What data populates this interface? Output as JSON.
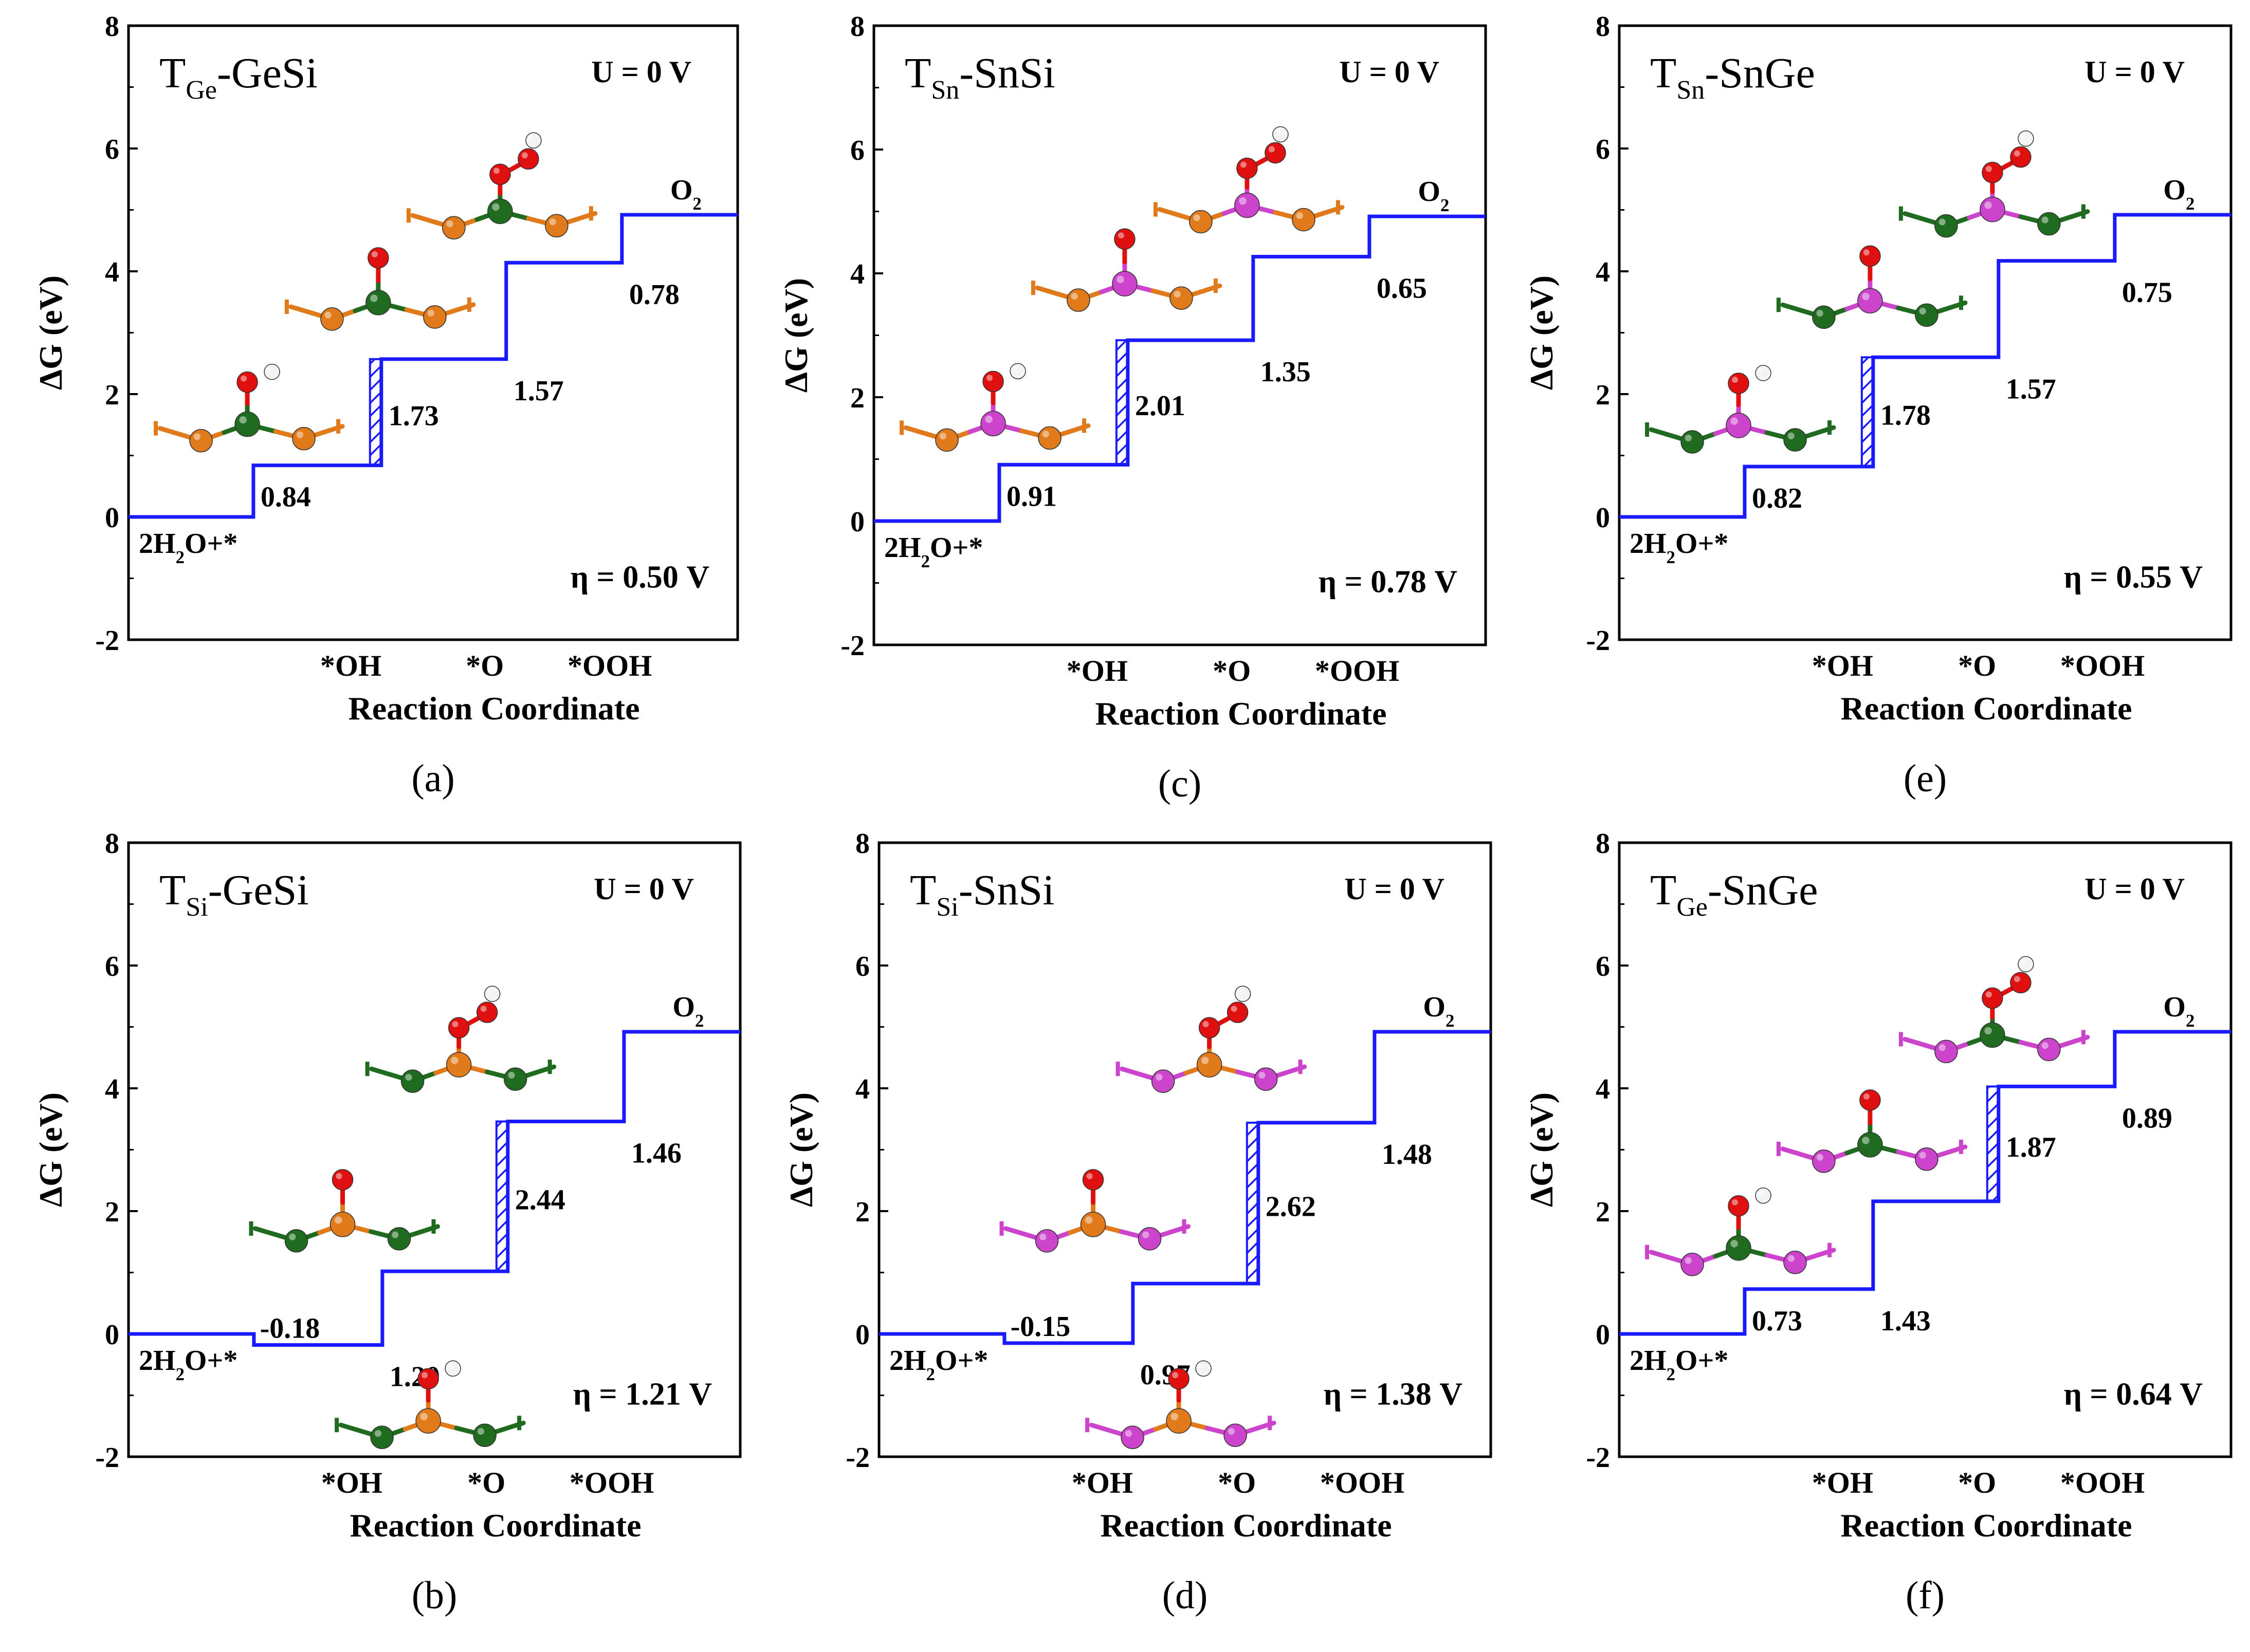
{
  "figure": {
    "colors": {
      "step_line": "#1a1aff",
      "hatch": "#1a1aff",
      "axis": "#000000",
      "atom_ge": "#1f6b1f",
      "atom_si": "#e07a1a",
      "atom_sn": "#cc44cc",
      "atom_o": "#e01010",
      "atom_h": "#f4f4f4"
    }
  },
  "chart_data": [
    {
      "panel_label": "(a)",
      "type": "line",
      "title_main": "T",
      "title_sub": "Ge",
      "title_rest": "-GeSi",
      "potential": "U = 0 V",
      "overpotential": "η = 0.50 V",
      "ylabel": "ΔG (eV)",
      "xlabel": "Reaction  Coordinate",
      "ylim": [
        -2,
        8
      ],
      "yticks": [
        "-2",
        "0",
        "2",
        "4",
        "6",
        "8"
      ],
      "xcat": [
        "*OH",
        "*O",
        "*OOH"
      ],
      "start_label": "2H2O+*",
      "end_label": "O2",
      "energies": [
        0,
        0.84,
        2.57,
        4.14,
        4.92
      ],
      "step_labels": [
        "0.84",
        "1.73",
        "1.57",
        "0.78"
      ],
      "rds_step": 1,
      "adsorbed_on": [
        "Ge",
        "Ge",
        "Ge"
      ],
      "neighbor_atom": "Si"
    },
    {
      "panel_label": "(b)",
      "type": "line",
      "title_main": "T",
      "title_sub": "Si",
      "title_rest": "-GeSi",
      "potential": "U = 0 V",
      "overpotential": "η = 1.21 V",
      "ylabel": "ΔG (eV)",
      "xlabel": "Reaction  Coordinate",
      "ylim": [
        -2,
        8
      ],
      "yticks": [
        "-2",
        "0",
        "2",
        "4",
        "6",
        "8"
      ],
      "xcat": [
        "*OH",
        "*O",
        "*OOH"
      ],
      "start_label": "2H2O+*",
      "end_label": "O2",
      "energies": [
        0,
        -0.18,
        1.02,
        3.46,
        4.92
      ],
      "step_labels": [
        "-0.18",
        "1.20",
        "2.44",
        "1.46"
      ],
      "rds_step": 2,
      "adsorbed_on": [
        "Si",
        "Si",
        "Si"
      ],
      "neighbor_atom": "Ge"
    },
    {
      "panel_label": "(c)",
      "type": "line",
      "title_main": "T",
      "title_sub": "Sn",
      "title_rest": "-SnSi",
      "potential": "U = 0 V",
      "overpotential": "η = 0.78 V",
      "ylabel": "ΔG (eV)",
      "xlabel": "Reaction  Coordinate",
      "ylim": [
        -2,
        8
      ],
      "yticks": [
        "-2",
        "0",
        "2",
        "4",
        "6",
        "8"
      ],
      "xcat": [
        "*OH",
        "*O",
        "*OOH"
      ],
      "start_label": "2H2O+*",
      "end_label": "O2",
      "energies": [
        0,
        0.91,
        2.92,
        4.27,
        4.92
      ],
      "step_labels": [
        "0.91",
        "2.01",
        "1.35",
        "0.65"
      ],
      "rds_step": 1,
      "adsorbed_on": [
        "Sn",
        "Sn",
        "Sn"
      ],
      "neighbor_atom": "Si"
    },
    {
      "panel_label": "(d)",
      "type": "line",
      "title_main": "T",
      "title_sub": "Si",
      "title_rest": "-SnSi",
      "potential": "U = 0 V",
      "overpotential": "η = 1.38 V",
      "ylabel": "ΔG (eV)",
      "xlabel": "Reaction  Coordinate",
      "ylim": [
        -2,
        8
      ],
      "yticks": [
        "-2",
        "0",
        "2",
        "4",
        "6",
        "8"
      ],
      "xcat": [
        "*OH",
        "*O",
        "*OOH"
      ],
      "start_label": "2H2O+*",
      "end_label": "O2",
      "energies": [
        0,
        -0.15,
        0.82,
        3.44,
        4.92
      ],
      "step_labels": [
        "-0.15",
        "0.97",
        "2.62",
        "1.48"
      ],
      "rds_step": 2,
      "adsorbed_on": [
        "Si",
        "Si",
        "Si"
      ],
      "neighbor_atom": "Sn"
    },
    {
      "panel_label": "(e)",
      "type": "line",
      "title_main": "T",
      "title_sub": "Sn",
      "title_rest": "-SnGe",
      "potential": "U = 0 V",
      "overpotential": "η = 0.55 V",
      "ylabel": "ΔG (eV)",
      "xlabel": "Reaction  Coordinate",
      "ylim": [
        -2,
        8
      ],
      "yticks": [
        "-2",
        "0",
        "2",
        "4",
        "6",
        "8"
      ],
      "xcat": [
        "*OH",
        "*O",
        "*OOH"
      ],
      "start_label": "2H2O+*",
      "end_label": "O2",
      "energies": [
        0,
        0.82,
        2.6,
        4.17,
        4.92
      ],
      "step_labels": [
        "0.82",
        "1.78",
        "1.57",
        "0.75"
      ],
      "rds_step": 1,
      "adsorbed_on": [
        "Sn",
        "Sn",
        "Sn"
      ],
      "neighbor_atom": "Ge"
    },
    {
      "panel_label": "(f)",
      "type": "line",
      "title_main": "T",
      "title_sub": "Ge",
      "title_rest": "-SnGe",
      "potential": "U = 0 V",
      "overpotential": "η = 0.64 V",
      "ylabel": "ΔG (eV)",
      "xlabel": "Reaction  Coordinate",
      "ylim": [
        -2,
        8
      ],
      "yticks": [
        "-2",
        "0",
        "2",
        "4",
        "6",
        "8"
      ],
      "xcat": [
        "*OH",
        "*O",
        "*OOH"
      ],
      "start_label": "2H2O+*",
      "end_label": "O2",
      "energies": [
        0,
        0.73,
        2.16,
        4.03,
        4.92
      ],
      "step_labels": [
        "0.73",
        "1.43",
        "1.87",
        "0.89"
      ],
      "rds_step": 2,
      "adsorbed_on": [
        "Ge",
        "Ge",
        "Ge"
      ],
      "neighbor_atom": "Sn"
    }
  ]
}
